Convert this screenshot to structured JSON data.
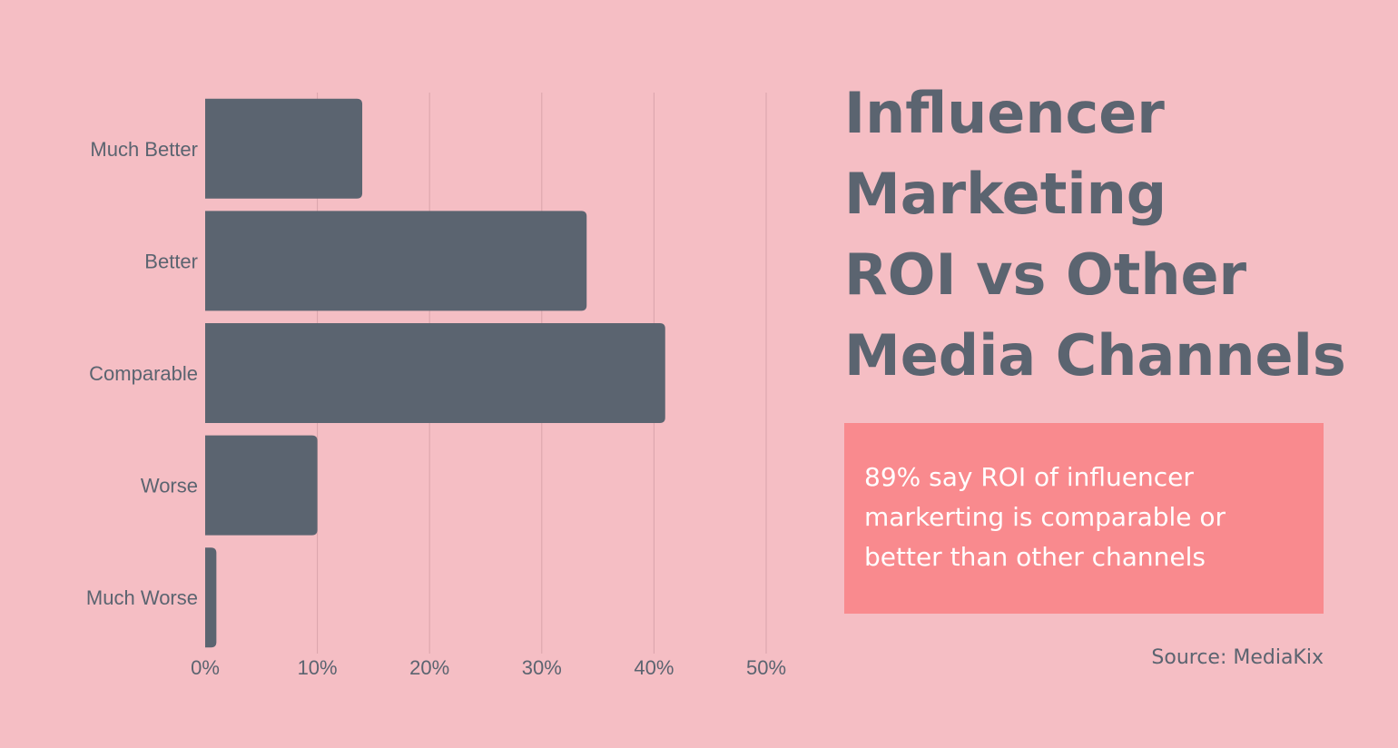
{
  "chart_data": {
    "type": "bar",
    "orientation": "horizontal",
    "categories": [
      "Much Better",
      "Better",
      "Comparable",
      "Worse",
      "Much Worse"
    ],
    "values": [
      14,
      34,
      41,
      10,
      1
    ],
    "x_ticks": [
      "0%",
      "10%",
      "20%",
      "30%",
      "40%",
      "50%"
    ],
    "xlim": [
      0,
      50
    ],
    "grid": "vertical",
    "bar_color": "#5b6470"
  },
  "title_lines": [
    "Influencer",
    "Marketing",
    "ROI vs Other",
    "Media Channels"
  ],
  "callout_lines": [
    "89% say ROI of influencer",
    "markerting is comparable or",
    "better than other channels"
  ],
  "source": "Source: MediaKix",
  "colors": {
    "background": "#f5bec4",
    "text": "#5b6470",
    "callout_background": "#f98a8e",
    "callout_text": "#ffffff",
    "gridline": "#d9a4ab"
  }
}
